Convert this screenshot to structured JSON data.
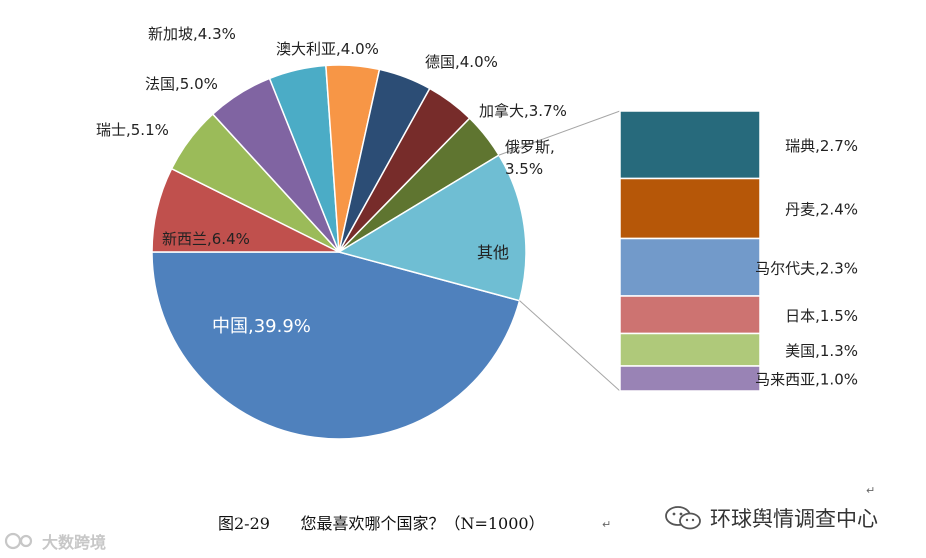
{
  "chart_data": {
    "type": "pie",
    "slices": [
      {
        "label": "中国",
        "value": 39.9,
        "color": "#4F81BD"
      },
      {
        "label": "新西兰",
        "value": 6.4,
        "color": "#C0504D"
      },
      {
        "label": "瑞士",
        "value": 5.1,
        "color": "#9BBB59"
      },
      {
        "label": "法国",
        "value": 5.0,
        "color": "#8064A2"
      },
      {
        "label": "新加坡",
        "value": 4.3,
        "color": "#4BACC6"
      },
      {
        "label": "澳大利亚",
        "value": 4.0,
        "color": "#F79646"
      },
      {
        "label": "德国",
        "value": 4.0,
        "color": "#2C4D75"
      },
      {
        "label": "加拿大",
        "value": 3.7,
        "color": "#772C2A"
      },
      {
        "label": "俄罗斯",
        "value": 3.5,
        "color": "#5F7530"
      },
      {
        "label": "其他",
        "value": 11.2,
        "color": "#403152"
      },
      {
        "label": "",
        "value": 13.6,
        "color": "#6FBED3"
      }
    ],
    "other_label": "其他",
    "breakdown": [
      {
        "label": "瑞典",
        "value": 2.7,
        "color": "#276A7C"
      },
      {
        "label": "丹麦",
        "value": 2.4,
        "color": "#B65708"
      },
      {
        "label": "马尔代夫",
        "value": 2.3,
        "color": "#729ACA"
      },
      {
        "label": "日本",
        "value": 1.5,
        "color": "#CD7371"
      },
      {
        "label": "美国",
        "value": 1.3,
        "color": "#AFC97A"
      },
      {
        "label": "马来西亚",
        "value": 1.0,
        "color": "#9983B5"
      }
    ]
  },
  "caption": {
    "figure_number": "图2-29",
    "question": "您最喜欢哪个国家？（N=1000）"
  },
  "watermarks": {
    "right": "环球舆情调查中心",
    "left": "大数跨境"
  }
}
